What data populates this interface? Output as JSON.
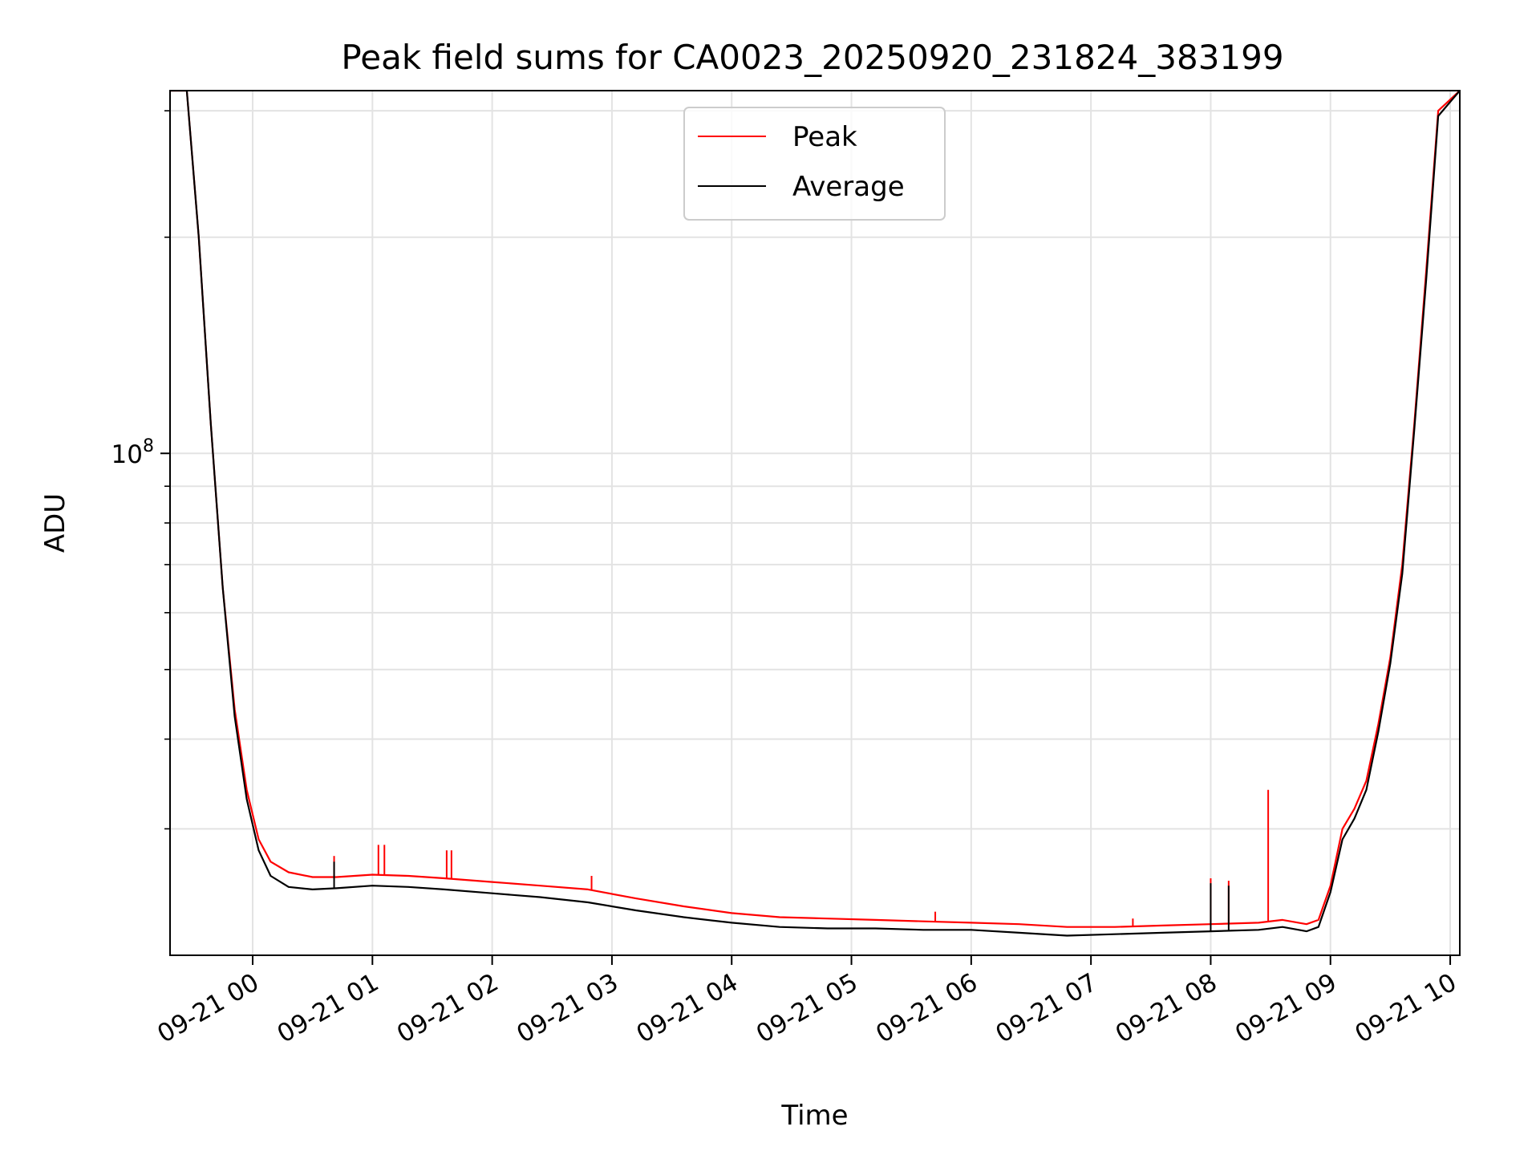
{
  "chart_data": {
    "type": "line",
    "title": "Peak field sums for CA0023_20250920_231824_383199",
    "xlabel": "Time",
    "ylabel": "ADU",
    "yscale": "log",
    "grid": true,
    "legend_position": "upper center",
    "x_unit": "hours since 2025-09-21 00:00",
    "xlim": [
      -0.69,
      10.08
    ],
    "ylim": [
      20000000,
      320000000
    ],
    "x_ticks": [
      {
        "value": 0,
        "label": "09-21 00"
      },
      {
        "value": 1,
        "label": "09-21 01"
      },
      {
        "value": 2,
        "label": "09-21 02"
      },
      {
        "value": 3,
        "label": "09-21 03"
      },
      {
        "value": 4,
        "label": "09-21 04"
      },
      {
        "value": 5,
        "label": "09-21 05"
      },
      {
        "value": 6,
        "label": "09-21 06"
      },
      {
        "value": 7,
        "label": "09-21 07"
      },
      {
        "value": 8,
        "label": "09-21 08"
      },
      {
        "value": 9,
        "label": "09-21 09"
      },
      {
        "value": 10,
        "label": "09-21 10"
      }
    ],
    "y_ticks_major": [
      {
        "value": 100000000,
        "base": "10",
        "exp": "8"
      }
    ],
    "y_ticks_minor": [
      30000000,
      40000000,
      50000000,
      60000000,
      70000000,
      80000000,
      90000000,
      200000000,
      300000000
    ],
    "series": [
      {
        "name": "Peak",
        "color": "#ff0000",
        "x": [
          -0.69,
          -0.55,
          -0.45,
          -0.35,
          -0.25,
          -0.15,
          -0.05,
          0.05,
          0.15,
          0.3,
          0.5,
          0.7,
          1.0,
          1.3,
          1.6,
          2.0,
          2.4,
          2.8,
          3.2,
          3.6,
          4.0,
          4.4,
          4.8,
          5.2,
          5.6,
          6.0,
          6.4,
          6.8,
          7.2,
          7.6,
          8.0,
          8.4,
          8.6,
          8.8,
          8.9,
          9.0,
          9.1,
          9.2,
          9.3,
          9.4,
          9.5,
          9.6,
          9.7,
          9.8,
          9.9,
          10.08
        ],
        "y": [
          320000000,
          320000000,
          200000000,
          110000000,
          65000000,
          44000000,
          34000000,
          29000000,
          27000000,
          26100000,
          25700000,
          25700000,
          25900000,
          25800000,
          25600000,
          25300000,
          25000000,
          24700000,
          24000000,
          23400000,
          22900000,
          22600000,
          22500000,
          22400000,
          22300000,
          22200000,
          22100000,
          21900000,
          21900000,
          22000000,
          22100000,
          22200000,
          22400000,
          22100000,
          22400000,
          25000000,
          30000000,
          32000000,
          35000000,
          42000000,
          52000000,
          70000000,
          110000000,
          180000000,
          300000000,
          320000000
        ]
      },
      {
        "name": "Average",
        "color": "#000000",
        "x": [
          -0.69,
          -0.55,
          -0.45,
          -0.35,
          -0.25,
          -0.15,
          -0.05,
          0.05,
          0.15,
          0.3,
          0.5,
          0.7,
          1.0,
          1.3,
          1.6,
          2.0,
          2.4,
          2.8,
          3.2,
          3.6,
          4.0,
          4.4,
          4.8,
          5.2,
          5.6,
          6.0,
          6.4,
          6.8,
          7.2,
          7.6,
          8.0,
          8.4,
          8.6,
          8.8,
          8.9,
          9.0,
          9.1,
          9.2,
          9.3,
          9.4,
          9.5,
          9.6,
          9.7,
          9.8,
          9.9,
          10.08
        ],
        "y": [
          320000000,
          320000000,
          200000000,
          110000000,
          65000000,
          43000000,
          33000000,
          28000000,
          25800000,
          24900000,
          24700000,
          24800000,
          25000000,
          24900000,
          24700000,
          24400000,
          24100000,
          23700000,
          23100000,
          22600000,
          22200000,
          21900000,
          21800000,
          21800000,
          21700000,
          21700000,
          21500000,
          21300000,
          21400000,
          21500000,
          21600000,
          21700000,
          21900000,
          21600000,
          21900000,
          24500000,
          29000000,
          31000000,
          34000000,
          41000000,
          51000000,
          68000000,
          108000000,
          175000000,
          295000000,
          320000000
        ]
      }
    ],
    "spikes": [
      {
        "series": "Peak",
        "x": 0.68,
        "y": 27500000
      },
      {
        "series": "Peak",
        "x": 1.05,
        "y": 28500000
      },
      {
        "series": "Peak",
        "x": 1.1,
        "y": 28500000
      },
      {
        "series": "Peak",
        "x": 1.62,
        "y": 28000000
      },
      {
        "series": "Peak",
        "x": 1.66,
        "y": 28000000
      },
      {
        "series": "Peak",
        "x": 2.83,
        "y": 25800000
      },
      {
        "series": "Peak",
        "x": 5.7,
        "y": 23000000
      },
      {
        "series": "Peak",
        "x": 7.35,
        "y": 22500000
      },
      {
        "series": "Peak",
        "x": 8.0,
        "y": 25600000
      },
      {
        "series": "Peak",
        "x": 8.15,
        "y": 25400000
      },
      {
        "series": "Peak",
        "x": 8.48,
        "y": 34000000
      },
      {
        "series": "Average",
        "x": 0.68,
        "y": 27000000
      },
      {
        "series": "Average",
        "x": 8.0,
        "y": 25200000
      },
      {
        "series": "Average",
        "x": 8.15,
        "y": 25000000
      }
    ]
  }
}
